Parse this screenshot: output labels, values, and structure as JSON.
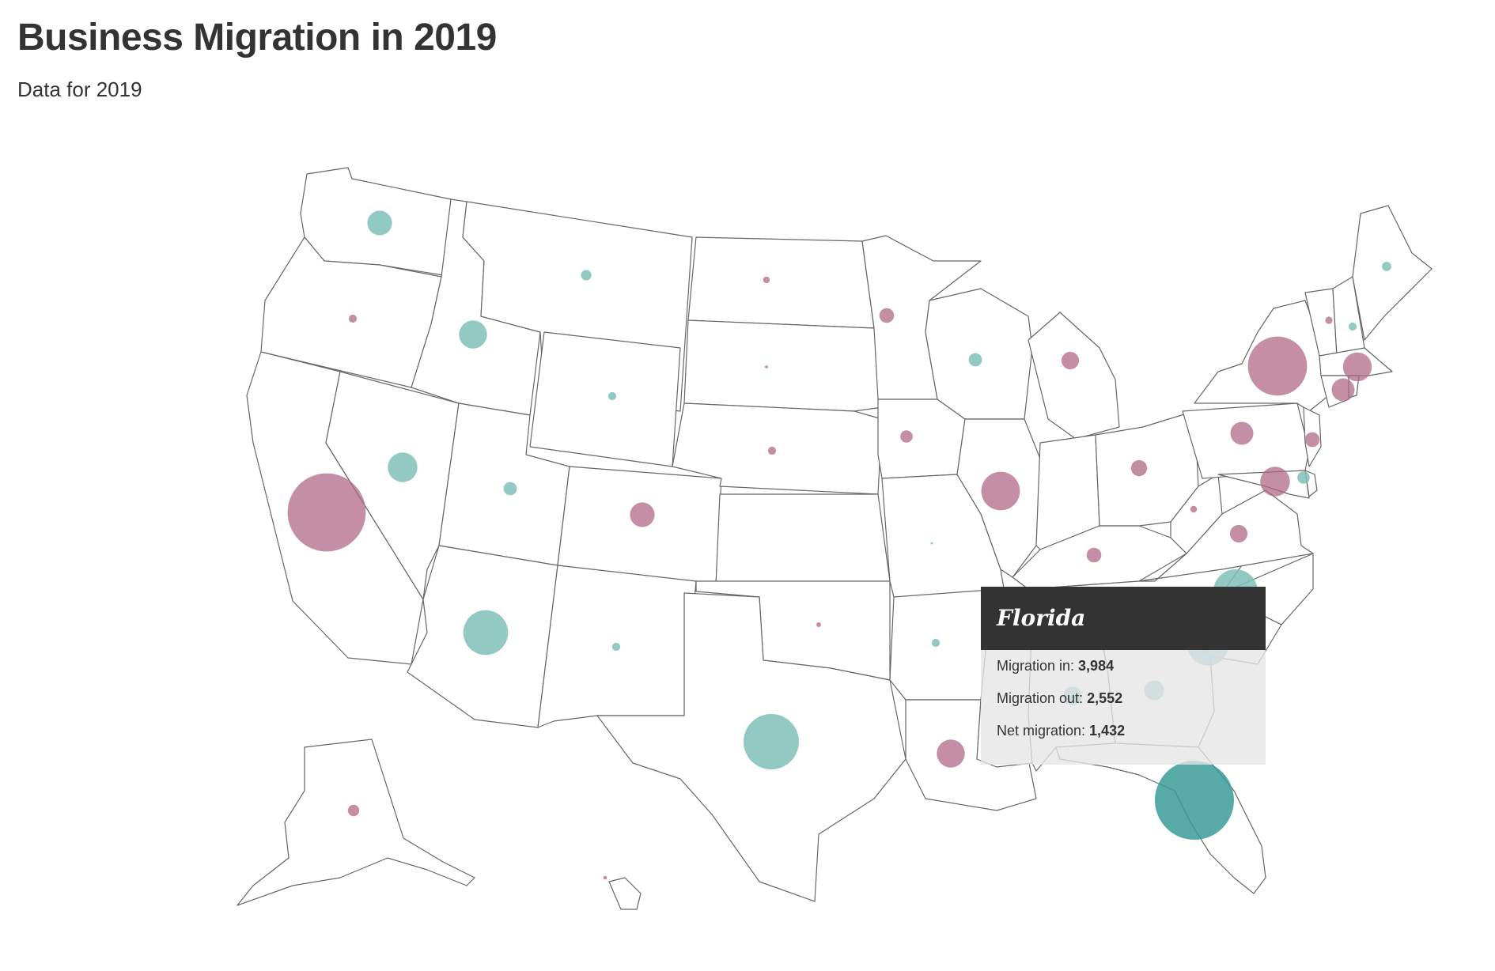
{
  "header": {
    "title": "Business Migration in 2019",
    "subtitle": "Data for 2019"
  },
  "colors": {
    "gain": "#7fbfb9",
    "loss": "#b06a86",
    "highlight": "#3a9b98",
    "state_border": "#666666",
    "tooltip_header": "#333333"
  },
  "tooltip": {
    "state": "Florida",
    "rows": [
      {
        "label": "Migration in: ",
        "value": "3,984"
      },
      {
        "label": "Migration out: ",
        "value": "2,552"
      },
      {
        "label": "Net migration: ",
        "value": "1,432"
      }
    ]
  },
  "chart_data": {
    "type": "bubble-map",
    "region": "United States",
    "encoding": "bubble area = magnitude of net migration; teal = net gain, purple = net loss",
    "states": [
      {
        "state": "Florida",
        "net": 1432,
        "direction": "gain",
        "highlighted": true
      },
      {
        "state": "California",
        "net": -1400,
        "direction": "loss"
      },
      {
        "state": "New York",
        "net": -800,
        "direction": "loss"
      },
      {
        "state": "Texas",
        "net": 700,
        "direction": "gain"
      },
      {
        "state": "North Carolina",
        "net": 450,
        "direction": "gain"
      },
      {
        "state": "Arizona",
        "net": 460,
        "direction": "gain"
      },
      {
        "state": "South Carolina",
        "net": 380,
        "direction": "gain"
      },
      {
        "state": "Illinois",
        "net": -340,
        "direction": "loss"
      },
      {
        "state": "Nevada",
        "net": 200,
        "direction": "gain"
      },
      {
        "state": "Idaho",
        "net": 180,
        "direction": "gain"
      },
      {
        "state": "Washington",
        "net": 140,
        "direction": "gain"
      },
      {
        "state": "Maryland",
        "net": -200,
        "direction": "loss"
      },
      {
        "state": "Massachusetts",
        "net": -190,
        "direction": "loss"
      },
      {
        "state": "Colorado",
        "net": -140,
        "direction": "loss"
      },
      {
        "state": "Louisiana",
        "net": -180,
        "direction": "loss"
      },
      {
        "state": "Connecticut",
        "net": -120,
        "direction": "loss"
      },
      {
        "state": "Pennsylvania",
        "net": -120,
        "direction": "loss"
      },
      {
        "state": "Virginia",
        "net": -70,
        "direction": "loss"
      },
      {
        "state": "Ohio",
        "net": -60,
        "direction": "loss"
      },
      {
        "state": "Michigan",
        "net": -70,
        "direction": "loss"
      },
      {
        "state": "Georgia",
        "net": 90,
        "direction": "gain"
      },
      {
        "state": "Alabama",
        "net": 80,
        "direction": "gain"
      },
      {
        "state": "Kentucky",
        "net": -50,
        "direction": "loss"
      },
      {
        "state": "New Jersey",
        "net": -50,
        "direction": "loss"
      },
      {
        "state": "Minnesota",
        "net": -50,
        "direction": "loss"
      },
      {
        "state": "Utah",
        "net": 40,
        "direction": "gain"
      },
      {
        "state": "Wisconsin",
        "net": 40,
        "direction": "gain"
      },
      {
        "state": "Delaware",
        "net": 35,
        "direction": "gain"
      },
      {
        "state": "Iowa",
        "net": -35,
        "direction": "loss"
      },
      {
        "state": "Alaska",
        "net": -30,
        "direction": "loss"
      },
      {
        "state": "Montana",
        "net": 25,
        "direction": "gain"
      },
      {
        "state": "Maine",
        "net": 20,
        "direction": "gain"
      },
      {
        "state": "Wyoming",
        "net": 15,
        "direction": "gain"
      },
      {
        "state": "New Mexico",
        "net": 15,
        "direction": "gain"
      },
      {
        "state": "Arkansas",
        "net": 15,
        "direction": "gain"
      },
      {
        "state": "New Hampshire",
        "net": 15,
        "direction": "gain"
      },
      {
        "state": "Oregon",
        "net": -15,
        "direction": "loss"
      },
      {
        "state": "Nebraska",
        "net": -15,
        "direction": "loss"
      },
      {
        "state": "Vermont",
        "net": -12,
        "direction": "loss"
      },
      {
        "state": "West Virginia",
        "net": -10,
        "direction": "loss"
      },
      {
        "state": "North Dakota",
        "net": -10,
        "direction": "loss"
      },
      {
        "state": "Oklahoma",
        "net": -5,
        "direction": "loss"
      },
      {
        "state": "Hawaii",
        "net": -3,
        "direction": "loss"
      },
      {
        "state": "South Dakota",
        "net": -2,
        "direction": "loss"
      },
      {
        "state": "Missouri",
        "net": 1,
        "direction": "gain"
      }
    ]
  }
}
